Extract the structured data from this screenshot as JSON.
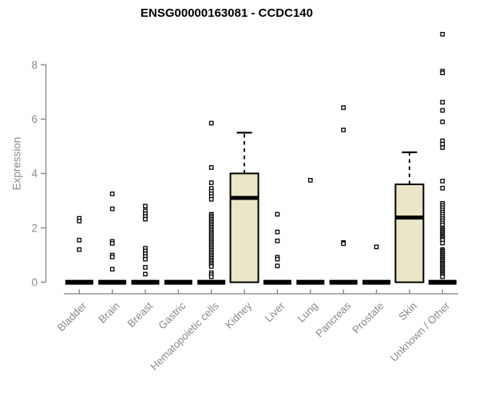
{
  "chart_data": {
    "type": "boxplot",
    "title": "ENSG00000163081 - CCDC140",
    "ylabel": "Expression",
    "yticks": [
      0,
      2,
      4,
      6,
      8
    ],
    "ylim": [
      0,
      9.3
    ],
    "grid": false,
    "legend": "none",
    "box_fill_color": "#ece6c9",
    "box_stroke_color": "#000000",
    "axis_color": "#8a8a8a",
    "label_color": "#8a8a8a",
    "categories": [
      "Bladder",
      "Brain",
      "Breast",
      "Gastric",
      "Hematopoietic cells",
      "Kidney",
      "Liver",
      "Lung",
      "Pancreas",
      "Prostate",
      "Skin",
      "Unknown / Other"
    ],
    "series": [
      {
        "category": "Bladder",
        "q1": 0,
        "median": 0,
        "q3": 0,
        "whisker_low": 0,
        "whisker_high": 0,
        "outliers": [
          2.35,
          2.25,
          1.55,
          1.2
        ]
      },
      {
        "category": "Brain",
        "q1": 0,
        "median": 0,
        "q3": 0,
        "whisker_low": 0,
        "whisker_high": 0,
        "outliers": [
          3.25,
          2.7,
          1.5,
          1.43,
          1.0,
          0.93,
          0.48
        ]
      },
      {
        "category": "Breast",
        "q1": 0,
        "median": 0,
        "q3": 0,
        "whisker_low": 0,
        "whisker_high": 0,
        "outliers": [
          2.8,
          2.62,
          2.52,
          2.42,
          2.32,
          1.25,
          1.15,
          1.05,
          0.95,
          0.85,
          0.55,
          0.3
        ]
      },
      {
        "category": "Gastric",
        "q1": 0,
        "median": 0,
        "q3": 0,
        "whisker_low": 0,
        "whisker_high": 0,
        "outliers": []
      },
      {
        "category": "Hematopoietic cells",
        "q1": 0,
        "median": 0,
        "q3": 0,
        "whisker_low": 0,
        "whisker_high": 0,
        "outliers": [
          5.85,
          4.22,
          3.66,
          3.45,
          3.35,
          3.25,
          3.15,
          3.05,
          2.5,
          2.44,
          2.38,
          2.32,
          2.26,
          2.2,
          2.14,
          2.08,
          2.02,
          1.96,
          1.9,
          1.84,
          1.78,
          1.72,
          1.66,
          1.6,
          1.54,
          1.48,
          1.42,
          1.36,
          1.3,
          1.24,
          1.18,
          1.12,
          1.06,
          1.0,
          0.94,
          0.88,
          0.82,
          0.76,
          0.7,
          0.64,
          0.58,
          0.35,
          0.28,
          0.2
        ]
      },
      {
        "category": "Kidney",
        "q1": 0,
        "median": 3.1,
        "q3": 4.0,
        "whisker_low": 0,
        "whisker_high": 5.5,
        "outliers": []
      },
      {
        "category": "Liver",
        "q1": 0,
        "median": 0,
        "q3": 0,
        "whisker_low": 0,
        "whisker_high": 0,
        "outliers": [
          2.5,
          1.85,
          1.52,
          0.92,
          0.85,
          0.6
        ]
      },
      {
        "category": "Lung",
        "q1": 0,
        "median": 0,
        "q3": 0,
        "whisker_low": 0,
        "whisker_high": 0,
        "outliers": [
          3.75
        ]
      },
      {
        "category": "Pancreas",
        "q1": 0,
        "median": 0,
        "q3": 0,
        "whisker_low": 0,
        "whisker_high": 0,
        "outliers": [
          6.42,
          5.6,
          1.46,
          1.42
        ]
      },
      {
        "category": "Prostate",
        "q1": 0,
        "median": 0,
        "q3": 0,
        "whisker_low": 0,
        "whisker_high": 0,
        "outliers": [
          1.3
        ]
      },
      {
        "category": "Skin",
        "q1": 0,
        "median": 2.38,
        "q3": 3.6,
        "whisker_low": 0,
        "whisker_high": 4.78,
        "outliers": []
      },
      {
        "category": "Unknown / Other",
        "q1": 0,
        "median": 0,
        "q3": 0,
        "whisker_low": 0,
        "whisker_high": 0,
        "outliers": [
          9.12,
          7.76,
          7.7,
          6.62,
          6.32,
          5.9,
          5.2,
          5.08,
          4.95,
          3.72,
          3.46,
          2.9,
          2.82,
          2.74,
          2.66,
          2.58,
          2.5,
          2.42,
          2.34,
          2.26,
          2.18,
          2.1,
          2.0,
          1.95,
          1.9,
          1.85,
          1.8,
          1.75,
          1.7,
          1.65,
          1.6,
          1.55,
          1.44,
          1.2,
          1.15,
          1.1,
          1.05,
          1.0,
          0.95,
          0.9,
          0.85,
          0.8,
          0.75,
          0.7,
          0.65,
          0.6,
          0.55,
          0.5,
          0.45,
          0.4,
          0.35,
          0.3,
          0.25,
          0.2
        ]
      }
    ]
  }
}
